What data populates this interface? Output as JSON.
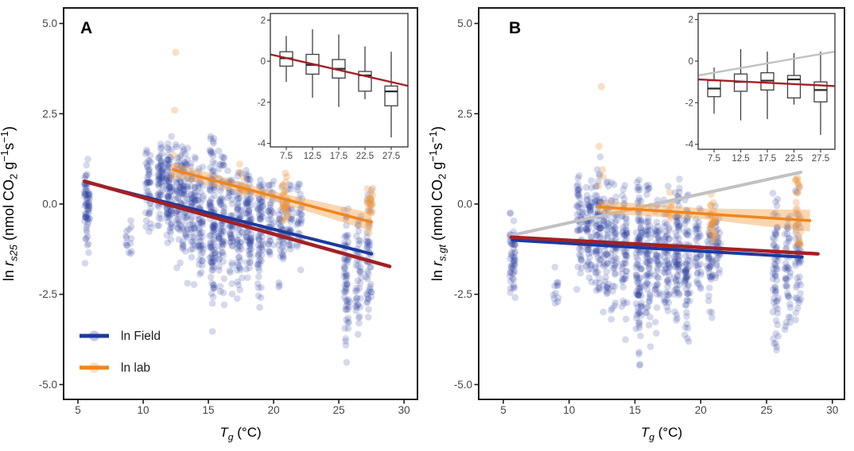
{
  "colors": {
    "field_point": "#2c3f9f",
    "field_line": "#1c3a9e",
    "lab_point": "#f0963a",
    "lab_line": "#f0861c",
    "lab_ribbon": "#f5a54f",
    "all_line": "#a32024",
    "gray_line": "#c1c1c1",
    "panel_border": "#1a1a1a",
    "inset_border": "#3f3f3f",
    "axis_text": "#454545",
    "title_text": "#000000",
    "median_stroke": "#2a2a2a"
  },
  "legend": {
    "items": [
      {
        "label": "ln Field",
        "series": "field"
      },
      {
        "label": "ln lab",
        "series": "lab"
      }
    ]
  },
  "chart_data": [
    {
      "panel_label": "A",
      "type": "scatter",
      "has_legend": true,
      "x_axis": {
        "label_plain": "Tg (°C)",
        "label_segments": [
          {
            "t": "T",
            "i": true
          },
          {
            "t": "g",
            "i": true,
            "s": "sub"
          },
          {
            "t": " (°C)"
          }
        ],
        "ticks": [
          {
            "v": 5,
            "label": "5"
          },
          {
            "v": 10,
            "label": "10"
          },
          {
            "v": 15,
            "label": "15"
          },
          {
            "v": 20,
            "label": "20"
          },
          {
            "v": 25,
            "label": "25"
          },
          {
            "v": 30,
            "label": "30"
          }
        ],
        "lim": [
          3.9,
          31.03
        ]
      },
      "y_axis": {
        "label_plain": "ln rs25 (nmol CO2 g−1s−1)",
        "label_segments": [
          {
            "t": "ln "
          },
          {
            "t": "r",
            "i": true
          },
          {
            "t": "s25",
            "i": true,
            "s": "sub"
          },
          {
            "t": " (nmol CO"
          },
          {
            "t": "2",
            "s": "sub"
          },
          {
            "t": " g"
          },
          {
            "t": "−1",
            "s": "sup"
          },
          {
            "t": "s"
          },
          {
            "t": "−1",
            "s": "sup"
          },
          {
            "t": ")"
          }
        ],
        "ticks": [
          {
            "v": 5,
            "label": "5.0"
          },
          {
            "v": 2.5,
            "label": "2.5"
          },
          {
            "v": 0,
            "label": "0.0"
          },
          {
            "v": -2.5,
            "label": "-2.5"
          },
          {
            "v": -5,
            "label": "-5.0"
          }
        ],
        "lim": [
          -5.41,
          5.43
        ]
      },
      "field_columns": [
        {
          "t": 5.7,
          "n": 70,
          "mu": 0.05,
          "sd": 0.75,
          "lo": -2.4,
          "hi": 1.3
        },
        {
          "t": 8.9,
          "n": 14,
          "mu": -0.95,
          "sd": 0.35,
          "lo": -1.6,
          "hi": -0.4
        },
        {
          "t": 10.4,
          "n": 45,
          "mu": 0.55,
          "sd": 0.65,
          "lo": -1.3,
          "hi": 1.9
        },
        {
          "t": 11.3,
          "n": 60,
          "mu": 0.65,
          "sd": 0.55,
          "lo": -1.2,
          "hi": 1.8
        },
        {
          "t": 12.0,
          "n": 85,
          "mu": 0.35,
          "sd": 0.8,
          "lo": -1.8,
          "hi": 2.1
        },
        {
          "t": 12.7,
          "n": 55,
          "mu": 0.3,
          "sd": 0.8,
          "lo": -2.0,
          "hi": 1.7
        },
        {
          "t": 13.2,
          "n": 60,
          "mu": 0.15,
          "sd": 0.9,
          "lo": -2.3,
          "hi": 1.6
        },
        {
          "t": 13.8,
          "n": 55,
          "mu": 0.0,
          "sd": 1.0,
          "lo": -2.7,
          "hi": 1.4
        },
        {
          "t": 14.4,
          "n": 60,
          "mu": -0.1,
          "sd": 1.0,
          "lo": -3.1,
          "hi": 1.2
        },
        {
          "t": 15.3,
          "n": 110,
          "mu": -0.3,
          "sd": 1.2,
          "lo": -3.6,
          "hi": 1.9
        },
        {
          "t": 16.0,
          "n": 70,
          "mu": -0.3,
          "sd": 1.0,
          "lo": -3.0,
          "hi": 1.5
        },
        {
          "t": 16.7,
          "n": 50,
          "mu": -0.4,
          "sd": 0.9,
          "lo": -2.6,
          "hi": 1.0
        },
        {
          "t": 17.4,
          "n": 60,
          "mu": -0.5,
          "sd": 1.0,
          "lo": -2.9,
          "hi": 0.95
        },
        {
          "t": 18.1,
          "n": 80,
          "mu": -0.4,
          "sd": 0.9,
          "lo": -2.4,
          "hi": 1.0
        },
        {
          "t": 19.0,
          "n": 70,
          "mu": -0.6,
          "sd": 1.1,
          "lo": -3.4,
          "hi": 0.8
        },
        {
          "t": 19.8,
          "n": 40,
          "mu": -0.5,
          "sd": 0.7,
          "lo": -1.6,
          "hi": 0.7
        },
        {
          "t": 20.6,
          "n": 45,
          "mu": -0.8,
          "sd": 0.9,
          "lo": -2.6,
          "hi": 0.6
        },
        {
          "t": 21.2,
          "n": 35,
          "mu": -0.4,
          "sd": 0.6,
          "lo": -1.4,
          "hi": 0.7
        },
        {
          "t": 22.0,
          "n": 30,
          "mu": -0.5,
          "sd": 0.7,
          "lo": -1.9,
          "hi": 0.6
        },
        {
          "t": 25.6,
          "n": 65,
          "mu": -2.1,
          "sd": 1.1,
          "lo": -4.4,
          "hi": 0.4
        },
        {
          "t": 26.5,
          "n": 45,
          "mu": -1.8,
          "sd": 1.0,
          "lo": -3.7,
          "hi": -0.3
        },
        {
          "t": 27.3,
          "n": 50,
          "mu": -1.4,
          "sd": 1.1,
          "lo": -3.4,
          "hi": 0.45
        }
      ],
      "lab_columns": [
        {
          "t": 12.4,
          "pts": [
            4.2,
            2.6,
            1.35,
            1.05,
            0.9,
            0.75
          ]
        },
        {
          "t": 17.6,
          "n": 9,
          "mu": 0.65,
          "sd": 0.3,
          "lo": 0.15,
          "hi": 1.15
        },
        {
          "t": 20.9,
          "n": 28,
          "mu": 0.1,
          "sd": 0.5,
          "lo": -1.0,
          "hi": 1.1
        },
        {
          "t": 27.4,
          "n": 22,
          "mu": -0.1,
          "sd": 0.45,
          "lo": -0.9,
          "hi": 0.9
        }
      ],
      "fits": [
        {
          "name": "lab-fit",
          "series": "lab",
          "x1": 12.3,
          "y1": 0.95,
          "x2": 27.5,
          "y2": -0.5,
          "w": 3.5,
          "ribbon": [
            0.2,
            0.13,
            0.25
          ]
        },
        {
          "name": "field-fit",
          "series": "field",
          "x1": 5.7,
          "y1": 0.6,
          "x2": 27.5,
          "y2": -1.38,
          "w": 4
        },
        {
          "name": "overall-fit",
          "series": "all",
          "x1": 5.5,
          "y1": 0.63,
          "x2": 28.9,
          "y2": -1.73,
          "w": 4.5
        }
      ],
      "inset": {
        "type": "boxplot",
        "x_ticks": [
          {
            "v": 7.5,
            "label": "7.5"
          },
          {
            "v": 12.5,
            "label": "12.5"
          },
          {
            "v": 17.5,
            "label": "17.5"
          },
          {
            "v": 22.5,
            "label": "22.5"
          },
          {
            "v": 27.5,
            "label": "27.5"
          }
        ],
        "y_ticks": [
          {
            "v": 2,
            "label": "2"
          },
          {
            "v": 0,
            "label": "0"
          },
          {
            "v": -2,
            "label": "-2"
          },
          {
            "v": -4,
            "label": "-4"
          }
        ],
        "xlim": [
          4.47,
          30.68
        ],
        "ylim": [
          -4.17,
          2.32
        ],
        "boxes": [
          {
            "x": 7.5,
            "whisk_lo": -1.01,
            "q1": -0.24,
            "median": 0.14,
            "q3": 0.46,
            "whisk_hi": 1.23
          },
          {
            "x": 12.5,
            "whisk_lo": -1.78,
            "q1": -0.63,
            "median": -0.18,
            "q3": 0.33,
            "whisk_hi": 1.55
          },
          {
            "x": 17.5,
            "whisk_lo": -2.23,
            "q1": -0.82,
            "median": -0.37,
            "q3": 0.08,
            "whisk_hi": 1.3
          },
          {
            "x": 22.5,
            "whisk_lo": -1.85,
            "q1": -1.46,
            "median": -0.69,
            "q3": -0.5,
            "whisk_hi": 0.72
          },
          {
            "x": 27.5,
            "whisk_lo": -3.71,
            "q1": -2.17,
            "median": -1.47,
            "q3": -1.21,
            "whisk_hi": 0.46
          }
        ],
        "lines": [
          {
            "series": "all",
            "x1": 4.47,
            "y1": 0.33,
            "x2": 30.68,
            "y2": -1.2
          }
        ]
      }
    },
    {
      "panel_label": "B",
      "type": "scatter",
      "has_legend": false,
      "x_axis": {
        "label_plain": "Tg (°C)",
        "label_segments": [
          {
            "t": "T",
            "i": true
          },
          {
            "t": "g",
            "i": true,
            "s": "sub"
          },
          {
            "t": " (°C)"
          }
        ],
        "ticks": [
          {
            "v": 5,
            "label": "5"
          },
          {
            "v": 10,
            "label": "10"
          },
          {
            "v": 15,
            "label": "15"
          },
          {
            "v": 20,
            "label": "20"
          },
          {
            "v": 25,
            "label": "25"
          },
          {
            "v": 30,
            "label": "30"
          }
        ],
        "lim": [
          3.13,
          30.92
        ]
      },
      "y_axis": {
        "label_plain": "ln rs.gt (nmol CO2 g−1s−1)",
        "label_segments": [
          {
            "t": "ln "
          },
          {
            "t": "r",
            "i": true
          },
          {
            "t": "s.gt",
            "i": true,
            "s": "sub"
          },
          {
            "t": " (nmol CO"
          },
          {
            "t": "2",
            "s": "sub"
          },
          {
            "t": " g"
          },
          {
            "t": "−1",
            "s": "sup"
          },
          {
            "t": "s"
          },
          {
            "t": "−1",
            "s": "sup"
          },
          {
            "t": ")"
          }
        ],
        "ticks": [
          {
            "v": 5,
            "label": "5.0"
          },
          {
            "v": 2.5,
            "label": "2.5"
          },
          {
            "v": 0,
            "label": "0.0"
          },
          {
            "v": -2.5,
            "label": "-2.5"
          },
          {
            "v": -5,
            "label": "-5.0"
          }
        ],
        "lim": [
          -5.41,
          5.43
        ]
      },
      "field_columns": [
        {
          "t": 5.7,
          "n": 55,
          "mu": -1.4,
          "sd": 0.6,
          "lo": -2.7,
          "hi": -0.2
        },
        {
          "t": 9.0,
          "n": 12,
          "mu": -2.2,
          "sd": 0.3,
          "lo": -2.8,
          "hi": -1.6
        },
        {
          "t": 10.8,
          "n": 50,
          "mu": -0.6,
          "sd": 0.8,
          "lo": -2.6,
          "hi": 0.8
        },
        {
          "t": 11.5,
          "n": 60,
          "mu": -0.5,
          "sd": 0.8,
          "lo": -2.5,
          "hi": 0.9
        },
        {
          "t": 12.2,
          "n": 75,
          "mu": -0.8,
          "sd": 0.95,
          "lo": -3.0,
          "hi": 1.5
        },
        {
          "t": 12.8,
          "n": 55,
          "mu": -0.9,
          "sd": 0.9,
          "lo": -3.0,
          "hi": 1.5
        },
        {
          "t": 13.4,
          "n": 55,
          "mu": -1.1,
          "sd": 1.0,
          "lo": -3.4,
          "hi": 0.8
        },
        {
          "t": 14.2,
          "n": 60,
          "mu": -1.2,
          "sd": 1.1,
          "lo": -3.8,
          "hi": 0.6
        },
        {
          "t": 15.3,
          "n": 105,
          "mu": -1.5,
          "sd": 1.3,
          "lo": -4.6,
          "hi": 0.7
        },
        {
          "t": 16.0,
          "n": 65,
          "mu": -1.4,
          "sd": 1.1,
          "lo": -4.0,
          "hi": 0.6
        },
        {
          "t": 16.7,
          "n": 50,
          "mu": -1.5,
          "sd": 1.0,
          "lo": -3.6,
          "hi": 0.2
        },
        {
          "t": 17.4,
          "n": 60,
          "mu": -1.4,
          "sd": 1.0,
          "lo": -3.5,
          "hi": 0.6
        },
        {
          "t": 18.2,
          "n": 80,
          "mu": -1.2,
          "sd": 1.0,
          "lo": -3.3,
          "hi": 0.7
        },
        {
          "t": 19.0,
          "n": 70,
          "mu": -1.5,
          "sd": 1.1,
          "lo": -3.9,
          "hi": 0.3
        },
        {
          "t": 19.8,
          "n": 40,
          "mu": -1.3,
          "sd": 0.7,
          "lo": -2.6,
          "hi": -0.1
        },
        {
          "t": 20.7,
          "n": 45,
          "mu": -1.6,
          "sd": 0.9,
          "lo": -3.4,
          "hi": -0.2
        },
        {
          "t": 21.3,
          "n": 35,
          "mu": -1.1,
          "sd": 0.6,
          "lo": -2.3,
          "hi": 0.0
        },
        {
          "t": 25.7,
          "n": 65,
          "mu": -1.8,
          "sd": 1.2,
          "lo": -4.3,
          "hi": 0.5
        },
        {
          "t": 26.6,
          "n": 45,
          "mu": -2.0,
          "sd": 1.0,
          "lo": -3.9,
          "hi": -0.3
        },
        {
          "t": 27.4,
          "n": 50,
          "mu": -1.3,
          "sd": 1.0,
          "lo": -3.3,
          "hi": 0.5
        }
      ],
      "lab_columns": [
        {
          "t": 12.4,
          "pts": [
            3.25,
            1.6,
            0.95,
            0.75,
            0.5
          ]
        },
        {
          "t": 17.6,
          "n": 8,
          "mu": -0.1,
          "sd": 0.3,
          "lo": -0.6,
          "hi": 0.4
        },
        {
          "t": 20.9,
          "n": 26,
          "mu": -0.35,
          "sd": 0.45,
          "lo": -1.4,
          "hi": 0.5
        },
        {
          "t": 27.4,
          "n": 24,
          "mu": -0.2,
          "sd": 0.6,
          "lo": -1.3,
          "hi": 1.0
        }
      ],
      "fits": [
        {
          "name": "gray-fit",
          "series": "gray",
          "x1": 5.6,
          "y1": -0.87,
          "x2": 27.6,
          "y2": 0.88,
          "w": 4
        },
        {
          "name": "lab-fit",
          "series": "lab",
          "x1": 12.2,
          "y1": -0.08,
          "x2": 28.3,
          "y2": -0.46,
          "w": 3.5,
          "ribbon": [
            0.18,
            0.15,
            0.3
          ]
        },
        {
          "name": "field-fit",
          "series": "field",
          "x1": 5.7,
          "y1": -1.0,
          "x2": 27.7,
          "y2": -1.47,
          "w": 4
        },
        {
          "name": "overall-fit",
          "series": "all",
          "x1": 5.6,
          "y1": -0.92,
          "x2": 28.9,
          "y2": -1.38,
          "w": 4.5
        }
      ],
      "inset": {
        "type": "boxplot",
        "x_ticks": [
          {
            "v": 7.5,
            "label": "7.5"
          },
          {
            "v": 12.5,
            "label": "12.5"
          },
          {
            "v": 17.5,
            "label": "17.5"
          },
          {
            "v": 22.5,
            "label": "22.5"
          },
          {
            "v": 27.5,
            "label": "27.5"
          }
        ],
        "y_ticks": [
          {
            "v": 2,
            "label": "2"
          },
          {
            "v": 0,
            "label": "0"
          },
          {
            "v": -2,
            "label": "-2"
          },
          {
            "v": -4,
            "label": "-4"
          }
        ],
        "xlim": [
          4.51,
          30.19
        ],
        "ylim": [
          -4.24,
          2.29
        ],
        "boxes": [
          {
            "x": 7.5,
            "whisk_lo": -2.53,
            "q1": -1.71,
            "median": -1.32,
            "q3": -0.94,
            "whisk_hi": -0.31
          },
          {
            "x": 12.5,
            "whisk_lo": -2.85,
            "q1": -1.45,
            "median": -1.0,
            "q3": -0.62,
            "whisk_hi": 0.58
          },
          {
            "x": 17.5,
            "whisk_lo": -2.79,
            "q1": -1.39,
            "median": -0.94,
            "q3": -0.56,
            "whisk_hi": 0.46
          },
          {
            "x": 22.5,
            "whisk_lo": -2.09,
            "q1": -1.77,
            "median": -0.88,
            "q3": -0.69,
            "whisk_hi": 0.39
          },
          {
            "x": 27.5,
            "whisk_lo": -3.55,
            "q1": -1.96,
            "median": -1.39,
            "q3": -1.0,
            "whisk_hi": 0.46
          }
        ],
        "lines": [
          {
            "series": "gray",
            "x1": 4.51,
            "y1": -0.69,
            "x2": 30.19,
            "y2": 0.46
          },
          {
            "series": "all",
            "x1": 4.51,
            "y1": -0.88,
            "x2": 30.19,
            "y2": -1.2
          }
        ]
      }
    }
  ]
}
